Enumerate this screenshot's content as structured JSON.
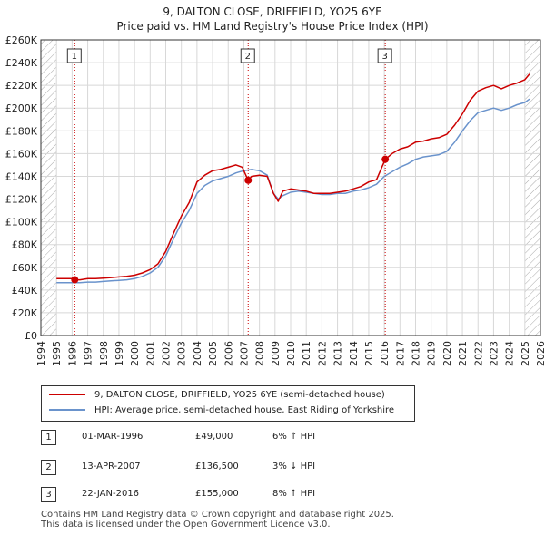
{
  "title_line1": "9, DALTON CLOSE, DRIFFIELD, YO25 6YE",
  "title_line2": "Price paid vs. HM Land Registry's House Price Index (HPI)",
  "colors": {
    "property": "#cc0000",
    "hpi": "#6a93cc",
    "marker_line": "#cc0000",
    "grid": "#d8d8d8",
    "hatch": "#aaaaaa",
    "axis": "#333333"
  },
  "legend": {
    "property_label": "9, DALTON CLOSE, DRIFFIELD, YO25 6YE (semi-detached house)",
    "hpi_label": "HPI: Average price, semi-detached house, East Riding of Yorkshire"
  },
  "sales": [
    {
      "num": "1",
      "date": "01-MAR-1996",
      "price": "£49,000",
      "hpi": "6% ↑ HPI"
    },
    {
      "num": "2",
      "date": "13-APR-2007",
      "price": "£136,500",
      "hpi": "3% ↓ HPI"
    },
    {
      "num": "3",
      "date": "22-JAN-2016",
      "price": "£155,000",
      "hpi": "8% ↑ HPI"
    }
  ],
  "footer": {
    "line1": "Contains HM Land Registry data © Crown copyright and database right 2025.",
    "line2": "This data is licensed under the Open Government Licence v3.0."
  },
  "chart_data": {
    "type": "line",
    "title": "9, DALTON CLOSE, DRIFFIELD, YO25 6YE",
    "subtitle": "Price paid vs. HM Land Registry's House Price Index (HPI)",
    "xlabel": "",
    "ylabel": "",
    "xlim": [
      1994,
      2026
    ],
    "ylim": [
      0,
      260000
    ],
    "x_ticks": [
      1994,
      1995,
      1996,
      1997,
      1998,
      1999,
      2000,
      2001,
      2002,
      2003,
      2004,
      2005,
      2006,
      2007,
      2008,
      2009,
      2010,
      2011,
      2012,
      2013,
      2014,
      2015,
      2016,
      2017,
      2018,
      2019,
      2020,
      2021,
      2022,
      2023,
      2024,
      2025,
      2026
    ],
    "y_ticks": [
      0,
      20000,
      40000,
      60000,
      80000,
      100000,
      120000,
      140000,
      160000,
      180000,
      200000,
      220000,
      240000,
      260000
    ],
    "y_tick_labels": [
      "£0",
      "£20K",
      "£40K",
      "£60K",
      "£80K",
      "£100K",
      "£120K",
      "£140K",
      "£160K",
      "£180K",
      "£200K",
      "£220K",
      "£240K",
      "£260K"
    ],
    "grid": true,
    "hatched_ranges": [
      [
        1994,
        1995.0
      ],
      [
        2025.0,
        2026
      ]
    ],
    "series": [
      {
        "name": "9, DALTON CLOSE, DRIFFIELD, YO25 6YE (semi-detached house)",
        "x": [
          1995.0,
          1995.5,
          1996.0,
          1996.17,
          1996.5,
          1997.0,
          1997.5,
          1998.0,
          1998.5,
          1999.0,
          1999.5,
          2000.0,
          2000.5,
          2001.0,
          2001.5,
          2002.0,
          2002.5,
          2003.0,
          2003.5,
          2004.0,
          2004.5,
          2005.0,
          2005.5,
          2006.0,
          2006.5,
          2006.9,
          2007.28,
          2007.5,
          2008.0,
          2008.5,
          2008.9,
          2009.2,
          2009.5,
          2010.0,
          2010.5,
          2011.0,
          2011.5,
          2012.0,
          2012.5,
          2013.0,
          2013.5,
          2014.0,
          2014.5,
          2015.0,
          2015.5,
          2016.06,
          2016.5,
          2017.0,
          2017.5,
          2018.0,
          2018.5,
          2019.0,
          2019.5,
          2020.0,
          2020.5,
          2021.0,
          2021.5,
          2022.0,
          2022.5,
          2023.0,
          2023.5,
          2024.0,
          2024.5,
          2025.0,
          2025.3
        ],
        "values": [
          50000,
          50000,
          50000,
          49000,
          49000,
          50000,
          50000,
          50500,
          51000,
          51500,
          52000,
          53000,
          55000,
          58000,
          63000,
          74000,
          90000,
          105000,
          117000,
          135000,
          141000,
          145000,
          146000,
          148000,
          150000,
          148000,
          136500,
          140000,
          141000,
          140000,
          125000,
          118000,
          127000,
          129000,
          128000,
          127000,
          125000,
          125000,
          125000,
          126000,
          127000,
          129000,
          131000,
          135000,
          137000,
          155000,
          160000,
          164000,
          166000,
          170000,
          171000,
          173000,
          174000,
          177000,
          185000,
          195000,
          207000,
          215000,
          218000,
          220000,
          217000,
          220000,
          222000,
          225000,
          230000
        ]
      },
      {
        "name": "HPI: Average price, semi-detached house, East Riding of Yorkshire",
        "x": [
          1995.0,
          1995.5,
          1996.0,
          1996.5,
          1997.0,
          1997.5,
          1998.0,
          1998.5,
          1999.0,
          1999.5,
          2000.0,
          2000.5,
          2001.0,
          2001.5,
          2002.0,
          2002.5,
          2003.0,
          2003.5,
          2004.0,
          2004.5,
          2005.0,
          2005.5,
          2006.0,
          2006.5,
          2007.0,
          2007.5,
          2008.0,
          2008.5,
          2008.9,
          2009.2,
          2009.5,
          2010.0,
          2010.5,
          2011.0,
          2011.5,
          2012.0,
          2012.5,
          2013.0,
          2013.5,
          2014.0,
          2014.5,
          2015.0,
          2015.5,
          2016.0,
          2016.5,
          2017.0,
          2017.5,
          2018.0,
          2018.5,
          2019.0,
          2019.5,
          2020.0,
          2020.5,
          2021.0,
          2021.5,
          2022.0,
          2022.5,
          2023.0,
          2023.5,
          2024.0,
          2024.5,
          2025.0,
          2025.3
        ],
        "values": [
          46500,
          46500,
          46500,
          46500,
          47000,
          47000,
          47500,
          48000,
          48500,
          49000,
          50000,
          52000,
          55000,
          60000,
          70000,
          85000,
          99000,
          110000,
          125000,
          132000,
          136000,
          138000,
          140000,
          143000,
          145000,
          146000,
          145000,
          141000,
          125000,
          120000,
          123000,
          126000,
          127000,
          126000,
          125000,
          124000,
          124000,
          125000,
          125000,
          127000,
          128000,
          130000,
          133000,
          140000,
          144000,
          148000,
          151000,
          155000,
          157000,
          158000,
          159000,
          162000,
          170000,
          180000,
          189000,
          196000,
          198000,
          200000,
          198000,
          200000,
          203000,
          205000,
          208000
        ]
      }
    ],
    "sale_markers": [
      {
        "label": "1",
        "x": 1996.17,
        "y": 49000
      },
      {
        "label": "2",
        "x": 2007.28,
        "y": 136500
      },
      {
        "label": "3",
        "x": 2016.06,
        "y": 155000
      }
    ]
  }
}
